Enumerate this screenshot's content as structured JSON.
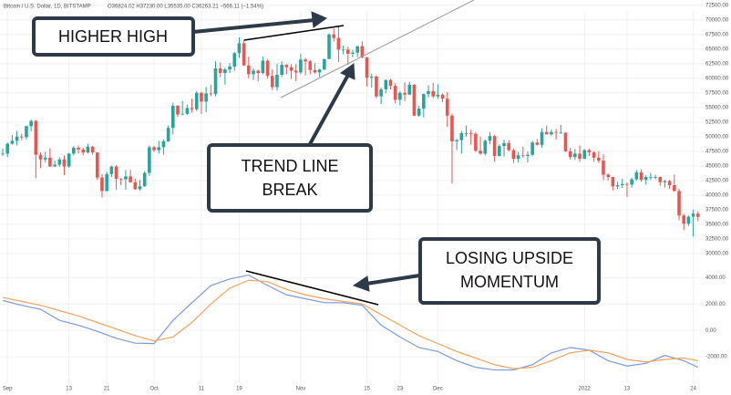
{
  "chart_data": [
    {
      "type": "candlestick",
      "title": "Bitcoin / U.S. Dollar, 1D, BITSTAMP",
      "legend_text": "O36824.02 H37230.00 L35535.00 C36263.21 −566.11 (−1.54%)",
      "up_color": "#26a69a",
      "down_color": "#ef5350",
      "grid": true,
      "xlim": [
        -0.58,
        148.2
      ],
      "ylim": [
        29200,
        73400
      ],
      "xticks": [
        {
          "value": 1,
          "label": "Sep"
        },
        {
          "value": 14,
          "label": "13"
        },
        {
          "value": 22,
          "label": "21"
        },
        {
          "value": 32,
          "label": "Oct"
        },
        {
          "value": 42,
          "label": "11"
        },
        {
          "value": 50,
          "label": "19"
        },
        {
          "value": 63,
          "label": "Nov"
        },
        {
          "value": 77,
          "label": "15"
        },
        {
          "value": 84,
          "label": "23"
        },
        {
          "value": 92,
          "label": "Dec"
        },
        {
          "value": 123,
          "label": "2022"
        },
        {
          "value": 132,
          "label": "13"
        },
        {
          "value": 146,
          "label": "24"
        }
      ],
      "yticks": [
        {
          "value": 72500,
          "label": "72500.00"
        },
        {
          "value": 70000,
          "label": "70000.00"
        },
        {
          "value": 67500,
          "label": "67500.00"
        },
        {
          "value": 65000,
          "label": "65000.00"
        },
        {
          "value": 62500,
          "label": "62500.00"
        },
        {
          "value": 60000,
          "label": "60000.00"
        },
        {
          "value": 57500,
          "label": "57500.00"
        },
        {
          "value": 55000,
          "label": "55000.00"
        },
        {
          "value": 52500,
          "label": "52500.00"
        },
        {
          "value": 50000,
          "label": "50000.00"
        },
        {
          "value": 47500,
          "label": "47500.00"
        },
        {
          "value": 45000,
          "label": "45000.00"
        },
        {
          "value": 42500,
          "label": "42500.00"
        },
        {
          "value": 40000,
          "label": "40000.00"
        },
        {
          "value": 37500,
          "label": "37500.00"
        },
        {
          "value": 35000,
          "label": "35000.00"
        },
        {
          "value": 32500,
          "label": "32500.00"
        },
        {
          "value": 30000,
          "label": "30000.00"
        }
      ],
      "open": [
        47000,
        47100,
        48800,
        49300,
        50000,
        49900,
        51800,
        52700,
        46900,
        46100,
        46400,
        44900,
        45200,
        46100,
        44900,
        47100,
        48100,
        47800,
        47300,
        48300,
        47300,
        43000,
        40700,
        43600,
        44900,
        42800,
        42700,
        43200,
        42200,
        41000,
        41500,
        43800,
        48200,
        47700,
        48200,
        49200,
        51500,
        55300,
        53800,
        53900,
        54900,
        54700,
        57500,
        56000,
        57400,
        57300,
        61700,
        60900,
        61500,
        62000,
        64300,
        66000,
        62200,
        60700,
        61300,
        60900,
        63000,
        60400,
        58500,
        60600,
        62300,
        61900,
        61300,
        61000,
        63200,
        62900,
        61400,
        61000,
        61500,
        63300,
        67500,
        66900,
        64900,
        64900,
        64200,
        64400,
        65500,
        63600,
        60100,
        60300,
        56900,
        58100,
        59700,
        58700,
        56300,
        57500,
        57200,
        58900,
        53600,
        54800,
        57300,
        57800,
        56900,
        57200,
        56500,
        53600,
        49200,
        49400,
        50600,
        50600,
        50500,
        47600,
        47100,
        49300,
        50100,
        46700,
        48400,
        48900,
        47700,
        46200,
        46800,
        46700,
        46900,
        49000,
        48600,
        50800,
        50400,
        50800,
        50700,
        50700,
        47500,
        46500,
        47100,
        46200,
        47700,
        47300,
        46400,
        45900,
        43500,
        43100,
        41500,
        41700,
        41900,
        41800,
        42700,
        43900,
        42600,
        43100,
        43100,
        43100,
        42200,
        42400,
        41700,
        40700,
        36500,
        35100,
        36300,
        36824.02
      ],
      "high": [
        48000,
        49000,
        50300,
        51000,
        50500,
        51900,
        52900,
        52900,
        47300,
        47400,
        48000,
        45900,
        46500,
        46800,
        47200,
        48400,
        48500,
        48100,
        48800,
        48400,
        47300,
        43600,
        44000,
        45000,
        45100,
        42900,
        44300,
        44300,
        42800,
        42600,
        44100,
        48500,
        48400,
        49300,
        49500,
        51900,
        55800,
        55400,
        56100,
        55500,
        56500,
        57800,
        57700,
        58500,
        58900,
        62900,
        62700,
        61800,
        62600,
        64500,
        67000,
        66600,
        63700,
        61700,
        61500,
        63700,
        63300,
        61500,
        62500,
        62900,
        62400,
        62400,
        62400,
        64200,
        63500,
        63100,
        62600,
        61600,
        63300,
        67700,
        68500,
        69000,
        65600,
        65400,
        64900,
        65500,
        66300,
        63600,
        60800,
        60500,
        58400,
        59800,
        59900,
        59200,
        57800,
        59300,
        59400,
        59000,
        55300,
        57400,
        58800,
        59200,
        59000,
        57400,
        57600,
        53900,
        49600,
        51000,
        51900,
        51200,
        50800,
        50000,
        49500,
        50800,
        50300,
        48700,
        49500,
        49400,
        48000,
        47400,
        48300,
        47500,
        49300,
        49600,
        51400,
        51900,
        51200,
        51300,
        52000,
        50700,
        48100,
        47900,
        48500,
        47900,
        47900,
        47500,
        47500,
        47000,
        43700,
        43100,
        42300,
        42800,
        42200,
        43000,
        44300,
        44400,
        43400,
        43800,
        43500,
        43200,
        42600,
        42600,
        43500,
        41100,
        36800,
        36500,
        37500,
        37230
      ],
      "low": [
        46700,
        46500,
        48600,
        48500,
        49400,
        49500,
        50900,
        42900,
        44600,
        45600,
        44800,
        44800,
        44800,
        43400,
        44700,
        46800,
        47100,
        46800,
        47100,
        46900,
        42600,
        39600,
        40600,
        43100,
        40900,
        41700,
        40900,
        42100,
        40900,
        40800,
        41400,
        43300,
        47400,
        47100,
        46900,
        49100,
        50400,
        53400,
        53700,
        53700,
        54100,
        54400,
        53900,
        54200,
        56900,
        56900,
        60200,
        58900,
        60900,
        61300,
        63500,
        62100,
        60000,
        59700,
        59500,
        60700,
        59900,
        58000,
        57900,
        60200,
        60700,
        59900,
        59500,
        60700,
        60500,
        60700,
        60800,
        60200,
        61400,
        63300,
        66300,
        62800,
        64100,
        62300,
        63600,
        63600,
        63400,
        58600,
        58400,
        56600,
        55600,
        57400,
        58100,
        55700,
        55400,
        56100,
        57100,
        53600,
        53400,
        53300,
        56700,
        56600,
        56500,
        55900,
        51700,
        42000,
        47700,
        47100,
        50000,
        48600,
        47400,
        46900,
        46800,
        48700,
        45700,
        46600,
        46600,
        47500,
        45500,
        45600,
        46400,
        45600,
        46700,
        48500,
        48100,
        50400,
        50200,
        49500,
        50500,
        47400,
        46100,
        46000,
        45700,
        46200,
        46700,
        45700,
        45500,
        42600,
        42500,
        40800,
        41000,
        41200,
        39700,
        41300,
        42500,
        42300,
        41800,
        42600,
        42700,
        41600,
        41300,
        41100,
        40600,
        35700,
        34000,
        34700,
        32900,
        35535
      ],
      "close": [
        47100,
        48800,
        49300,
        50000,
        49900,
        51800,
        52700,
        46900,
        46100,
        46400,
        44900,
        45200,
        46100,
        44900,
        47100,
        48100,
        47800,
        47300,
        48300,
        47300,
        43000,
        40700,
        43600,
        44900,
        42800,
        42700,
        43200,
        42200,
        41000,
        41500,
        43800,
        48200,
        47700,
        48200,
        49200,
        51500,
        55300,
        53800,
        53900,
        54900,
        54700,
        57500,
        56000,
        57400,
        57300,
        61700,
        60900,
        61500,
        62000,
        64300,
        66000,
        62200,
        60700,
        61300,
        60900,
        63000,
        60400,
        58500,
        60600,
        62300,
        61900,
        61300,
        61000,
        63200,
        62900,
        61400,
        61000,
        61500,
        63300,
        67500,
        66900,
        64900,
        64900,
        64200,
        64400,
        65500,
        63600,
        60100,
        60300,
        56900,
        58100,
        59700,
        58700,
        56300,
        57500,
        57200,
        58900,
        53600,
        54800,
        57300,
        57800,
        56900,
        57200,
        56500,
        53600,
        49200,
        49400,
        50600,
        50600,
        50500,
        47600,
        47100,
        49300,
        50100,
        46700,
        48400,
        48900,
        47700,
        46200,
        46800,
        46700,
        46900,
        49000,
        48600,
        50800,
        50400,
        50800,
        50700,
        50700,
        47500,
        46500,
        47100,
        46200,
        47700,
        47300,
        46400,
        45900,
        43500,
        43100,
        41500,
        41700,
        41900,
        41800,
        42700,
        43900,
        42600,
        43100,
        43100,
        43100,
        42200,
        42400,
        41700,
        40700,
        36500,
        35100,
        36300,
        36824.02,
        36263.21
      ]
    },
    {
      "type": "line",
      "grid": true,
      "xlim": [
        -0.58,
        148.2
      ],
      "ylim": [
        -4000,
        5200
      ],
      "yticks": [
        {
          "value": 4000,
          "label": "4000.00"
        },
        {
          "value": 2000,
          "label": "2000.00"
        },
        {
          "value": 0,
          "label": "0.00"
        },
        {
          "value": -2000,
          "label": "-2000.00"
        }
      ],
      "x": [
        0,
        4,
        8,
        12,
        16,
        20,
        24,
        28,
        32,
        36,
        40,
        44,
        48,
        52,
        56,
        60,
        64,
        68,
        72,
        76,
        80,
        84,
        88,
        92,
        96,
        100,
        104,
        108,
        112,
        116,
        120,
        124,
        128,
        132,
        136,
        140,
        144,
        147
      ],
      "series": [
        {
          "color": "#7b9be0",
          "values": [
            2270,
            1900,
            1600,
            760,
            400,
            -70,
            -600,
            -970,
            -1000,
            760,
            2100,
            3400,
            3900,
            4200,
            3400,
            2700,
            2400,
            2100,
            2100,
            1900,
            400,
            -500,
            -1300,
            -1600,
            -2300,
            -2800,
            -3000,
            -3000,
            -2600,
            -1700,
            -1300,
            -1500,
            -2300,
            -2700,
            -2500,
            -1900,
            -2300,
            -2800
          ]
        },
        {
          "color": "#f4a460",
          "values": [
            2500,
            2200,
            1900,
            1500,
            1100,
            600,
            100,
            -400,
            -800,
            -500,
            600,
            2000,
            3200,
            3800,
            3700,
            3100,
            2700,
            2400,
            2200,
            2000,
            1200,
            400,
            -400,
            -1000,
            -1600,
            -2100,
            -2600,
            -2900,
            -2800,
            -2300,
            -1700,
            -1500,
            -1700,
            -2200,
            -2400,
            -2200,
            -2100,
            -2300
          ]
        }
      ]
    }
  ],
  "annotations": [
    {
      "lines": [
        "HIGHER HIGH"
      ]
    },
    {
      "lines": [
        "TREND LINE",
        "BREAK"
      ]
    },
    {
      "lines": [
        "LOSING UPSIDE",
        "MOMENTUM"
      ]
    }
  ]
}
